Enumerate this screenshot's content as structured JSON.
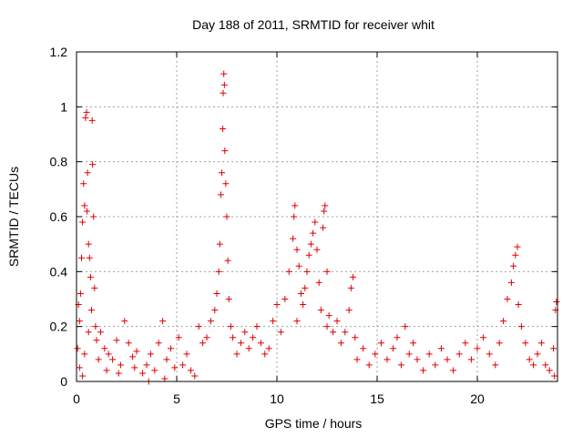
{
  "chart_data": {
    "type": "scatter",
    "title": "Day 188 of 2011, SRMTID for receiver whit",
    "xlabel": "GPS time / hours",
    "ylabel": "SRMTID / TECUs",
    "xlim": [
      0,
      24
    ],
    "ylim": [
      0,
      1.2
    ],
    "x_ticks": [
      {
        "value": 0,
        "label": "0"
      },
      {
        "value": 5,
        "label": "5"
      },
      {
        "value": 10,
        "label": "10"
      },
      {
        "value": 15,
        "label": "15"
      },
      {
        "value": 20,
        "label": "20"
      }
    ],
    "y_ticks": [
      {
        "value": 0,
        "label": "0"
      },
      {
        "value": 0.2,
        "label": "0.2"
      },
      {
        "value": 0.4,
        "label": "0.4"
      },
      {
        "value": 0.6,
        "label": "0.6"
      },
      {
        "value": 0.8,
        "label": "0.8"
      },
      {
        "value": 1.0,
        "label": "1"
      },
      {
        "value": 1.2,
        "label": "1.2"
      }
    ],
    "grid": true,
    "marker": "+",
    "marker_color": "#e00000",
    "series": [
      {
        "name": "SRMTID",
        "points": [
          [
            0.05,
            0.12
          ],
          [
            0.1,
            0.28
          ],
          [
            0.15,
            0.22
          ],
          [
            0.2,
            0.32
          ],
          [
            0.25,
            0.45
          ],
          [
            0.3,
            0.58
          ],
          [
            0.35,
            0.72
          ],
          [
            0.4,
            0.64
          ],
          [
            0.45,
            0.96
          ],
          [
            0.5,
            0.98
          ],
          [
            0.52,
            0.62
          ],
          [
            0.55,
            0.76
          ],
          [
            0.6,
            0.5
          ],
          [
            0.65,
            0.45
          ],
          [
            0.7,
            0.38
          ],
          [
            0.75,
            0.26
          ],
          [
            0.78,
            0.95
          ],
          [
            0.8,
            0.79
          ],
          [
            0.85,
            0.6
          ],
          [
            0.9,
            0.34
          ],
          [
            0.95,
            0.2
          ],
          [
            1.0,
            0.15
          ],
          [
            0.15,
            0.05
          ],
          [
            0.3,
            0.02
          ],
          [
            0.4,
            0.1
          ],
          [
            0.6,
            0.18
          ],
          [
            1.2,
            0.18
          ],
          [
            1.4,
            0.12
          ],
          [
            1.6,
            0.1
          ],
          [
            1.8,
            0.08
          ],
          [
            2.0,
            0.15
          ],
          [
            2.2,
            0.06
          ],
          [
            2.4,
            0.22
          ],
          [
            2.6,
            0.14
          ],
          [
            2.8,
            0.09
          ],
          [
            3.0,
            0.11
          ],
          [
            1.1,
            0.08
          ],
          [
            1.5,
            0.04
          ],
          [
            2.1,
            0.03
          ],
          [
            2.9,
            0.05
          ],
          [
            3.3,
            0.03
          ],
          [
            3.5,
            0.06
          ],
          [
            3.7,
            0.1
          ],
          [
            3.9,
            0.04
          ],
          [
            4.1,
            0.14
          ],
          [
            4.3,
            0.22
          ],
          [
            4.5,
            0.08
          ],
          [
            4.7,
            0.12
          ],
          [
            4.9,
            0.05
          ],
          [
            5.1,
            0.16
          ],
          [
            5.3,
            0.06
          ],
          [
            5.5,
            0.1
          ],
          [
            5.7,
            0.04
          ],
          [
            5.9,
            0.02
          ],
          [
            3.6,
            0.0
          ],
          [
            4.4,
            0.01
          ],
          [
            6.1,
            0.2
          ],
          [
            6.3,
            0.14
          ],
          [
            6.5,
            0.16
          ],
          [
            6.7,
            0.22
          ],
          [
            6.9,
            0.26
          ],
          [
            7.0,
            0.32
          ],
          [
            7.1,
            0.4
          ],
          [
            7.15,
            0.5
          ],
          [
            7.2,
            0.68
          ],
          [
            7.25,
            0.76
          ],
          [
            7.3,
            0.92
          ],
          [
            7.32,
            1.05
          ],
          [
            7.35,
            1.12
          ],
          [
            7.38,
            1.08
          ],
          [
            7.4,
            0.84
          ],
          [
            7.45,
            0.72
          ],
          [
            7.5,
            0.6
          ],
          [
            7.55,
            0.44
          ],
          [
            7.6,
            0.3
          ],
          [
            7.7,
            0.2
          ],
          [
            7.8,
            0.16
          ],
          [
            8.0,
            0.1
          ],
          [
            8.2,
            0.14
          ],
          [
            8.4,
            0.18
          ],
          [
            8.6,
            0.12
          ],
          [
            8.8,
            0.16
          ],
          [
            9.0,
            0.2
          ],
          [
            9.2,
            0.14
          ],
          [
            9.4,
            0.1
          ],
          [
            9.6,
            0.12
          ],
          [
            9.8,
            0.22
          ],
          [
            10.0,
            0.28
          ],
          [
            10.2,
            0.18
          ],
          [
            10.4,
            0.3
          ],
          [
            10.6,
            0.4
          ],
          [
            10.8,
            0.52
          ],
          [
            10.85,
            0.6
          ],
          [
            10.9,
            0.64
          ],
          [
            11.0,
            0.48
          ],
          [
            11.1,
            0.42
          ],
          [
            11.2,
            0.32
          ],
          [
            11.3,
            0.28
          ],
          [
            11.4,
            0.34
          ],
          [
            11.5,
            0.4
          ],
          [
            11.6,
            0.46
          ],
          [
            11.7,
            0.5
          ],
          [
            11.8,
            0.54
          ],
          [
            11.9,
            0.58
          ],
          [
            12.0,
            0.48
          ],
          [
            12.1,
            0.36
          ],
          [
            12.2,
            0.26
          ],
          [
            12.3,
            0.56
          ],
          [
            12.35,
            0.62
          ],
          [
            12.4,
            0.64
          ],
          [
            12.5,
            0.4
          ],
          [
            12.6,
            0.24
          ],
          [
            12.8,
            0.18
          ],
          [
            13.0,
            0.22
          ],
          [
            13.2,
            0.14
          ],
          [
            13.4,
            0.18
          ],
          [
            13.6,
            0.26
          ],
          [
            13.7,
            0.34
          ],
          [
            13.8,
            0.38
          ],
          [
            13.9,
            0.16
          ],
          [
            14.0,
            0.08
          ],
          [
            14.3,
            0.12
          ],
          [
            14.6,
            0.06
          ],
          [
            14.9,
            0.1
          ],
          [
            15.2,
            0.14
          ],
          [
            15.5,
            0.08
          ],
          [
            15.8,
            0.12
          ],
          [
            16.0,
            0.16
          ],
          [
            16.2,
            0.06
          ],
          [
            16.4,
            0.2
          ],
          [
            16.6,
            0.1
          ],
          [
            16.8,
            0.14
          ],
          [
            17.0,
            0.08
          ],
          [
            17.3,
            0.04
          ],
          [
            17.6,
            0.1
          ],
          [
            17.9,
            0.06
          ],
          [
            18.2,
            0.12
          ],
          [
            18.5,
            0.08
          ],
          [
            18.8,
            0.04
          ],
          [
            19.1,
            0.1
          ],
          [
            19.4,
            0.14
          ],
          [
            19.7,
            0.08
          ],
          [
            20.0,
            0.12
          ],
          [
            20.3,
            0.16
          ],
          [
            20.6,
            0.1
          ],
          [
            20.9,
            0.06
          ],
          [
            21.1,
            0.14
          ],
          [
            21.3,
            0.22
          ],
          [
            21.5,
            0.3
          ],
          [
            21.7,
            0.36
          ],
          [
            21.8,
            0.42
          ],
          [
            21.9,
            0.46
          ],
          [
            22.0,
            0.49
          ],
          [
            22.05,
            0.28
          ],
          [
            22.2,
            0.2
          ],
          [
            22.4,
            0.14
          ],
          [
            22.6,
            0.08
          ],
          [
            22.8,
            0.06
          ],
          [
            23.0,
            0.1
          ],
          [
            23.2,
            0.14
          ],
          [
            23.4,
            0.06
          ],
          [
            23.6,
            0.04
          ],
          [
            23.8,
            0.12
          ],
          [
            23.9,
            0.26
          ],
          [
            23.95,
            0.29
          ],
          [
            23.85,
            0.02
          ],
          [
            12.5,
            0.2
          ],
          [
            11.0,
            0.22
          ]
        ]
      }
    ]
  }
}
